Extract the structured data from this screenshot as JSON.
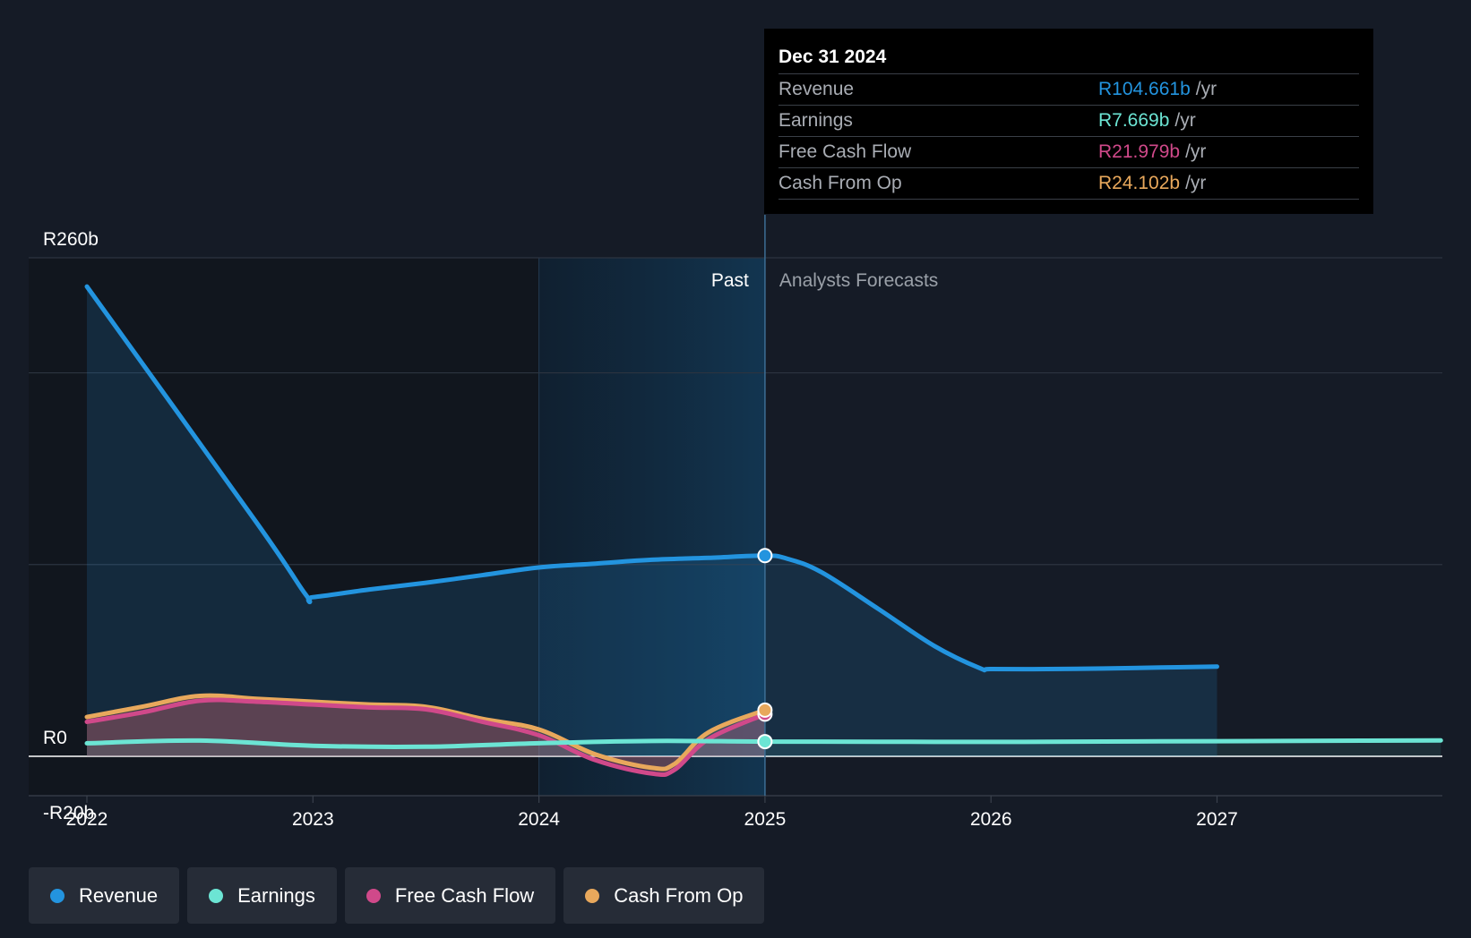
{
  "tooltip": {
    "date": "Dec 31 2024",
    "rows": [
      {
        "label": "Revenue",
        "value": "R104.661b",
        "unit": "/yr",
        "color": "#2394df"
      },
      {
        "label": "Earnings",
        "value": "R7.669b",
        "unit": "/yr",
        "color": "#6ce5d4"
      },
      {
        "label": "Free Cash Flow",
        "value": "R21.979b",
        "unit": "/yr",
        "color": "#d0498a"
      },
      {
        "label": "Cash From Op",
        "value": "R24.102b",
        "unit": "/yr",
        "color": "#e8a85c"
      }
    ]
  },
  "legend": [
    {
      "label": "Revenue",
      "color": "#2394df"
    },
    {
      "label": "Earnings",
      "color": "#6ce5d4"
    },
    {
      "label": "Free Cash Flow",
      "color": "#d0498a"
    },
    {
      "label": "Cash From Op",
      "color": "#e8a85c"
    }
  ],
  "chart_data": {
    "type": "line",
    "title": "",
    "xlabel": "",
    "ylabel": "",
    "ylim": [
      -20,
      260
    ],
    "y_tick_labels": [
      "R260b",
      "R0",
      "-R20b"
    ],
    "x_ticks": [
      2022,
      2023,
      2024,
      2025,
      2026,
      2027
    ],
    "x_tick_labels": [
      "2022",
      "2023",
      "2024",
      "2025",
      "2026",
      "2027"
    ],
    "xlim": [
      2021.75,
      2027.99
    ],
    "past_label": "Past",
    "forecast_label": "Analysts Forecasts",
    "divider_x": 2025.0,
    "highlight_start_x": 2024.0,
    "series": [
      {
        "name": "Revenue",
        "color": "#2394df",
        "x": [
          2022.0,
          2022.75,
          2022.97,
          2023.0,
          2023.25,
          2023.5,
          2023.75,
          2024.0,
          2024.25,
          2024.5,
          2024.75,
          2025.0,
          2025.1,
          2025.25,
          2025.5,
          2025.75,
          2025.95,
          2026.0,
          2026.25,
          2026.5,
          2026.75,
          2027.0
        ],
        "y": [
          245,
          122,
          84,
          83,
          87,
          90.5,
          94.5,
          98.5,
          100.5,
          102.5,
          103.5,
          104.661,
          103,
          96,
          77,
          57.5,
          46,
          45.5,
          45.5,
          45.8,
          46.3,
          46.8
        ]
      },
      {
        "name": "Earnings",
        "color": "#6ce5d4",
        "x": [
          2022.0,
          2022.5,
          2023.0,
          2023.5,
          2024.0,
          2024.5,
          2025.0,
          2025.5,
          2026.0,
          2026.5,
          2027.0,
          2027.5,
          2027.99
        ],
        "y": [
          6.8,
          8.2,
          5.5,
          5.0,
          6.8,
          8.0,
          7.669,
          7.6,
          7.5,
          7.7,
          7.9,
          8.1,
          8.3
        ]
      },
      {
        "name": "Free Cash Flow",
        "color": "#d0498a",
        "x": [
          2022.0,
          2022.25,
          2022.5,
          2022.75,
          2023.0,
          2023.25,
          2023.5,
          2023.75,
          2024.0,
          2024.25,
          2024.5,
          2024.6,
          2024.75,
          2025.0
        ],
        "y": [
          18,
          23,
          29,
          28.5,
          27,
          25.5,
          24.5,
          18,
          11,
          -2,
          -9,
          -7,
          9,
          21.979
        ]
      },
      {
        "name": "Cash From Op",
        "color": "#e8a85c",
        "x": [
          2022.0,
          2022.25,
          2022.5,
          2022.75,
          2023.0,
          2023.25,
          2023.5,
          2023.75,
          2024.0,
          2024.25,
          2024.5,
          2024.6,
          2024.75,
          2025.0
        ],
        "y": [
          20.5,
          26,
          31.5,
          30,
          28.5,
          27,
          25.8,
          19.5,
          14,
          1,
          -6,
          -4,
          12.5,
          24.102
        ]
      }
    ]
  }
}
